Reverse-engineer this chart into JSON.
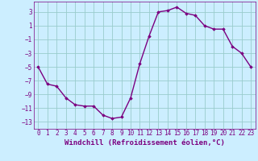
{
  "hours": [
    0,
    1,
    2,
    3,
    4,
    5,
    6,
    7,
    8,
    9,
    10,
    11,
    12,
    13,
    14,
    15,
    16,
    17,
    18,
    19,
    20,
    21,
    22,
    23
  ],
  "values": [
    -5,
    -7.5,
    -7.8,
    -9.5,
    -10.5,
    -10.7,
    -10.7,
    -12.0,
    -12.5,
    -12.3,
    -9.5,
    -4.5,
    -0.5,
    3.0,
    3.2,
    3.7,
    2.8,
    2.5,
    1.0,
    0.5,
    0.5,
    -2.0,
    -3.0,
    -5.0
  ],
  "line_color": "#7b0080",
  "marker": "D",
  "marker_size": 1.8,
  "bg_color": "#cceeff",
  "grid_color": "#99cccc",
  "xlabel": "Windchill (Refroidissement éolien,°C)",
  "ylabel": "",
  "ylim": [
    -14,
    4.5
  ],
  "xlim": [
    -0.5,
    23.5
  ],
  "yticks": [
    3,
    1,
    -1,
    -3,
    -5,
    -7,
    -9,
    -11,
    -13
  ],
  "xticks": [
    0,
    1,
    2,
    3,
    4,
    5,
    6,
    7,
    8,
    9,
    10,
    11,
    12,
    13,
    14,
    15,
    16,
    17,
    18,
    19,
    20,
    21,
    22,
    23
  ],
  "tick_color": "#7b0080",
  "label_color": "#7b0080",
  "line_width": 1.0,
  "font_size_ticks": 5.5,
  "font_size_label": 6.5
}
